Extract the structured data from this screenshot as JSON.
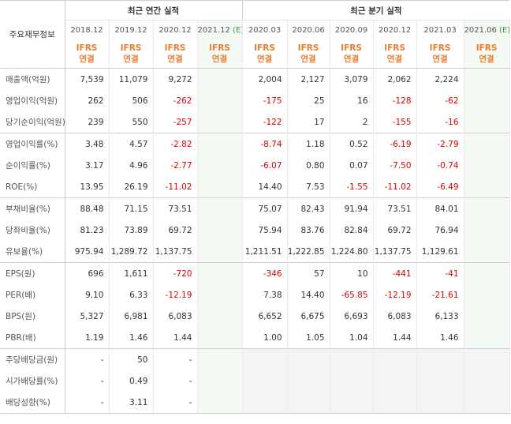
{
  "table": {
    "header_label": "주요재무정보",
    "annual_title": "최근 연간 실적",
    "quarter_title": "최근 분기 실적",
    "annual_periods": [
      "2018.12",
      "2019.12",
      "2020.12",
      "2021.12"
    ],
    "quarter_periods": [
      "2020.03",
      "2020.06",
      "2020.09",
      "2020.12",
      "2021.03",
      "2021.06"
    ],
    "estimate_mark": "(E)",
    "ifrs_label": "IFRS",
    "consol_label": "연결",
    "rows": [
      {
        "label": "매출액(억원)",
        "a": [
          "7,539",
          "11,079",
          "9,272",
          ""
        ],
        "q": [
          "2,004",
          "2,127",
          "3,079",
          "2,062",
          "2,224",
          ""
        ]
      },
      {
        "label": "영업이익(억원)",
        "a": [
          "262",
          "506",
          "-262",
          ""
        ],
        "q": [
          "-175",
          "25",
          "16",
          "-128",
          "-62",
          ""
        ]
      },
      {
        "label": "당기순이익(억원)",
        "a": [
          "239",
          "550",
          "-257",
          ""
        ],
        "q": [
          "-122",
          "17",
          "2",
          "-155",
          "-16",
          ""
        ]
      },
      {
        "label": "영업이익률(%)",
        "a": [
          "3.48",
          "4.57",
          "-2.82",
          ""
        ],
        "q": [
          "-8.74",
          "1.18",
          "0.52",
          "-6.19",
          "-2.79",
          ""
        ]
      },
      {
        "label": "순이익률(%)",
        "a": [
          "3.17",
          "4.96",
          "-2.77",
          ""
        ],
        "q": [
          "-6.07",
          "0.80",
          "0.07",
          "-7.50",
          "-0.74",
          ""
        ]
      },
      {
        "label": "ROE(%)",
        "a": [
          "13.95",
          "26.19",
          "-11.02",
          ""
        ],
        "q": [
          "14.40",
          "7.53",
          "-1.55",
          "-11.02",
          "-6.49",
          ""
        ]
      },
      {
        "label": "부채비율(%)",
        "a": [
          "88.48",
          "71.15",
          "73.51",
          ""
        ],
        "q": [
          "75.07",
          "82.43",
          "91.94",
          "73.51",
          "84.01",
          ""
        ]
      },
      {
        "label": "당좌비율(%)",
        "a": [
          "81.23",
          "73.89",
          "69.72",
          ""
        ],
        "q": [
          "75.94",
          "83.76",
          "82.84",
          "69.72",
          "76.94",
          ""
        ]
      },
      {
        "label": "유보율(%)",
        "a": [
          "975.94",
          "1,289.72",
          "1,137.75",
          ""
        ],
        "q": [
          "1,211.51",
          "1,222.85",
          "1,224.80",
          "1,137.75",
          "1,129.61",
          ""
        ]
      },
      {
        "label": "EPS(원)",
        "a": [
          "696",
          "1,611",
          "-720",
          ""
        ],
        "q": [
          "-346",
          "57",
          "10",
          "-441",
          "-41",
          ""
        ]
      },
      {
        "label": "PER(배)",
        "a": [
          "9.10",
          "6.33",
          "-12.19",
          ""
        ],
        "q": [
          "7.38",
          "14.40",
          "-65.85",
          "-12.19",
          "-21.61",
          ""
        ]
      },
      {
        "label": "BPS(원)",
        "a": [
          "5,327",
          "6,981",
          "6,083",
          ""
        ],
        "q": [
          "6,652",
          "6,675",
          "6,693",
          "6,083",
          "6,133",
          ""
        ]
      },
      {
        "label": "PBR(배)",
        "a": [
          "1.19",
          "1.46",
          "1.44",
          ""
        ],
        "q": [
          "1.00",
          "1.05",
          "1.04",
          "1.44",
          "1.46",
          ""
        ]
      },
      {
        "label": "주당배당금(원)",
        "a": [
          "-",
          "50",
          "-",
          ""
        ],
        "q": [
          "",
          "",
          "",
          "",
          "",
          ""
        ]
      },
      {
        "label": "시가배당률(%)",
        "a": [
          "-",
          "0.49",
          "-",
          ""
        ],
        "q": [
          "",
          "",
          "",
          "",
          "",
          ""
        ]
      },
      {
        "label": "배당성향(%)",
        "a": [
          "-",
          "3.11",
          "-",
          ""
        ],
        "q": [
          "",
          "",
          "",
          "",
          "",
          ""
        ]
      }
    ]
  }
}
